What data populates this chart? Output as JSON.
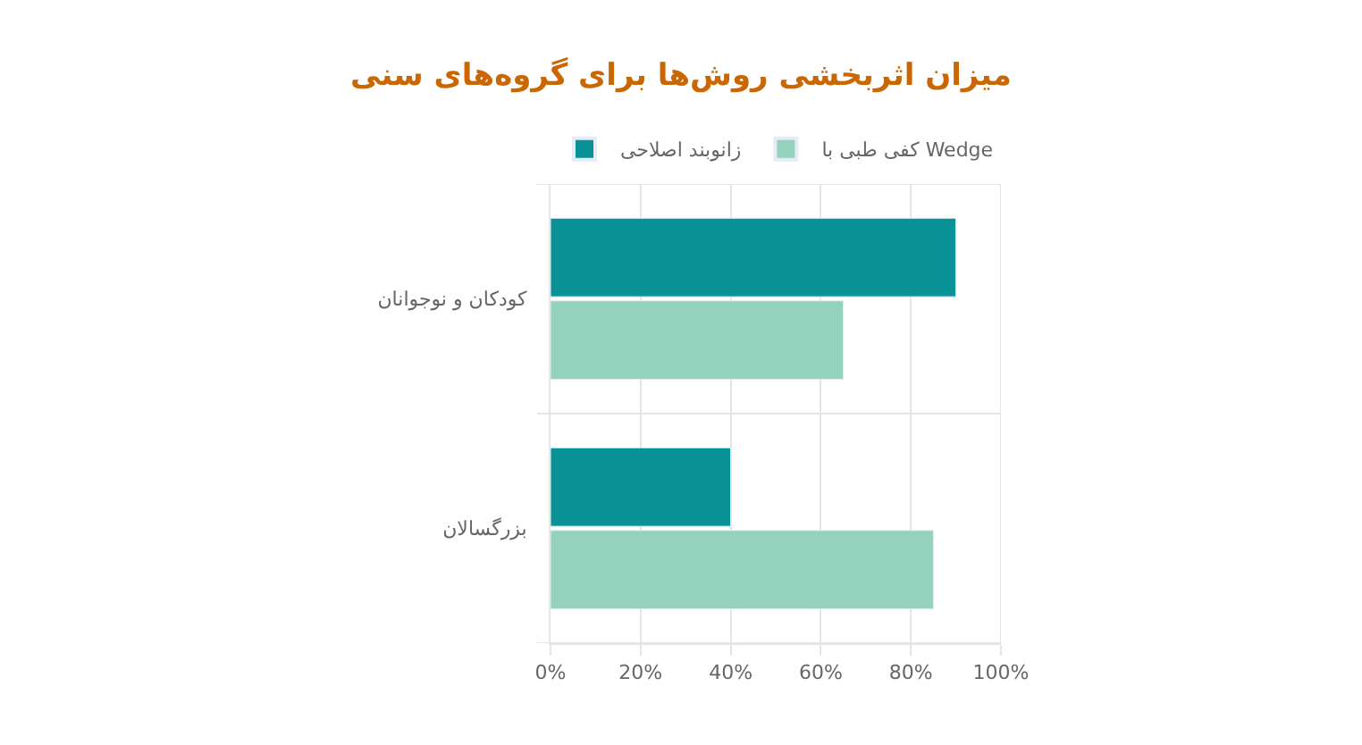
{
  "chart_data": {
    "type": "bar",
    "orientation": "horizontal",
    "title": "میزان اثربخشی روش‌ها برای گروه‌های سنی",
    "categories": [
      "کودکان و نوجوانان",
      "بزرگسالان"
    ],
    "series": [
      {
        "name": "زانوبند اصلاحی",
        "color": "#0a9396",
        "values": [
          90,
          40
        ]
      },
      {
        "name": "کفی طبی با Wedge",
        "color": "#94d2bd",
        "values": [
          65,
          85
        ]
      }
    ],
    "xlim": [
      0,
      100
    ],
    "xticks": [
      {
        "value": 0,
        "label": "0%"
      },
      {
        "value": 20,
        "label": "20%"
      },
      {
        "value": 40,
        "label": "40%"
      },
      {
        "value": 60,
        "label": "60%"
      },
      {
        "value": 80,
        "label": "80%"
      },
      {
        "value": 100,
        "label": "100%"
      }
    ],
    "grid": true,
    "legend": "top"
  }
}
